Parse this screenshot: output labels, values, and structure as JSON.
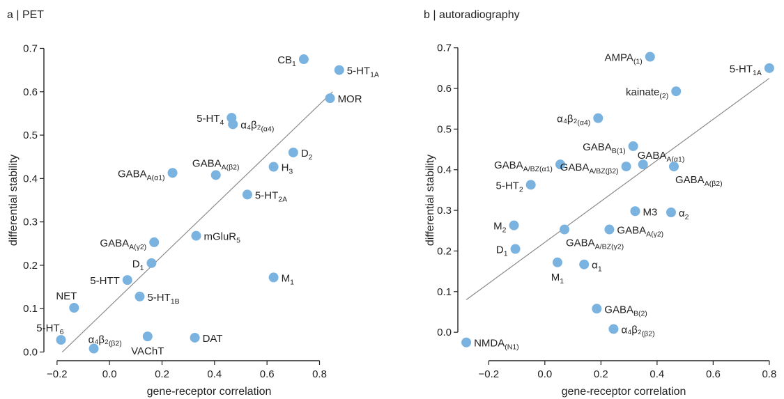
{
  "chart_data": [
    {
      "type": "scatter",
      "title": "a | PET",
      "xlabel": "gene-receptor correlation",
      "ylabel": "differential stability",
      "xlim": [
        -0.25,
        0.95
      ],
      "ylim": [
        -0.02,
        0.72
      ],
      "xticks": [
        -0.2,
        0.0,
        0.2,
        0.4,
        0.6,
        0.8
      ],
      "xtick_labels": [
        "−0.2",
        "0.0",
        "0.2",
        "0.4",
        "0.6",
        "0.8"
      ],
      "yticks": [
        0.0,
        0.1,
        0.2,
        0.3,
        0.4,
        0.5,
        0.6,
        0.7
      ],
      "ytick_labels": [
        "0.0",
        "0.1",
        "0.2",
        "0.3",
        "0.4",
        "0.5",
        "0.6",
        "0.7"
      ],
      "point_color": "#7ab3e0",
      "line_color": "#8a8a8a",
      "fit_line": {
        "x": [
          -0.18,
          0.85
        ],
        "y": [
          0.0,
          0.6
        ]
      },
      "points": [
        {
          "x": 0.74,
          "y": 0.675,
          "label": "CB",
          "sub": "1",
          "anchor": "left"
        },
        {
          "x": 0.875,
          "y": 0.65,
          "label": "5-HT",
          "sub": "1A",
          "anchor": "right"
        },
        {
          "x": 0.84,
          "y": 0.585,
          "label": "MOR",
          "sub": "",
          "anchor": "right"
        },
        {
          "x": 0.465,
          "y": 0.54,
          "label": "5-HT",
          "sub": "4",
          "anchor": "left"
        },
        {
          "x": 0.47,
          "y": 0.525,
          "label": "α₄β₂",
          "sub": "(α4)",
          "anchor": "right"
        },
        {
          "x": 0.7,
          "y": 0.46,
          "label": "D",
          "sub": "2",
          "anchor": "right"
        },
        {
          "x": 0.24,
          "y": 0.413,
          "label": "GABA",
          "sub": "A(α1)",
          "anchor": "left"
        },
        {
          "x": 0.405,
          "y": 0.408,
          "label": "GABA",
          "sub": "A(β2)",
          "anchor": "above"
        },
        {
          "x": 0.625,
          "y": 0.427,
          "label": "H",
          "sub": "3",
          "anchor": "right"
        },
        {
          "x": 0.525,
          "y": 0.363,
          "label": "5-HT",
          "sub": "2A",
          "anchor": "right"
        },
        {
          "x": 0.33,
          "y": 0.268,
          "label": "mGluR",
          "sub": "5",
          "anchor": "right"
        },
        {
          "x": 0.17,
          "y": 0.253,
          "label": "GABA",
          "sub": "A(γ2)",
          "anchor": "left"
        },
        {
          "x": 0.16,
          "y": 0.205,
          "label": "D",
          "sub": "1",
          "anchor": "left"
        },
        {
          "x": 0.625,
          "y": 0.172,
          "label": "M",
          "sub": "1",
          "anchor": "right"
        },
        {
          "x": 0.068,
          "y": 0.166,
          "label": "5-HTT",
          "sub": "",
          "anchor": "left"
        },
        {
          "x": 0.115,
          "y": 0.128,
          "label": "5-HT",
          "sub": "1B",
          "anchor": "right"
        },
        {
          "x": -0.135,
          "y": 0.102,
          "label": "NET",
          "sub": "",
          "anchor": "aboveleft"
        },
        {
          "x": -0.185,
          "y": 0.028,
          "label": "5-HT",
          "sub": "6",
          "anchor": "aboveleft"
        },
        {
          "x": -0.06,
          "y": 0.008,
          "label": "α₄β₂",
          "sub": "(β2)",
          "anchor": "aboveright"
        },
        {
          "x": 0.145,
          "y": 0.036,
          "label": "VAChT",
          "sub": "",
          "anchor": "below"
        },
        {
          "x": 0.325,
          "y": 0.033,
          "label": "DAT",
          "sub": "",
          "anchor": "right"
        }
      ]
    },
    {
      "type": "scatter",
      "title": "b | autoradiography",
      "xlabel": "gene-receptor correlation",
      "ylabel": "differential stability",
      "xlim": [
        -0.31,
        0.84
      ],
      "ylim": [
        -0.07,
        0.72
      ],
      "xticks": [
        -0.2,
        0.0,
        0.2,
        0.4,
        0.6,
        0.8
      ],
      "xtick_labels": [
        "−0.2",
        "0.0",
        "0.2",
        "0.4",
        "0.6",
        "0.8"
      ],
      "yticks": [
        0.0,
        0.1,
        0.2,
        0.3,
        0.4,
        0.5,
        0.6,
        0.7
      ],
      "ytick_labels": [
        "0.0",
        "0.1",
        "0.2",
        "0.3",
        "0.4",
        "0.5",
        "0.6",
        "0.7"
      ],
      "point_color": "#7ab3e0",
      "line_color": "#8a8a8a",
      "fit_line": {
        "x": [
          -0.28,
          0.8
        ],
        "y": [
          0.08,
          0.625
        ]
      },
      "points": [
        {
          "x": 0.375,
          "y": 0.678,
          "label": "AMPA",
          "sub": "(1)",
          "anchor": "left"
        },
        {
          "x": 0.8,
          "y": 0.65,
          "label": "5-HT",
          "sub": "1A",
          "anchor": "left"
        },
        {
          "x": 0.468,
          "y": 0.593,
          "label": "kainate",
          "sub": "(2)",
          "anchor": "left"
        },
        {
          "x": 0.19,
          "y": 0.527,
          "label": "α₄β₂",
          "sub": "(α4)",
          "anchor": "left"
        },
        {
          "x": 0.315,
          "y": 0.458,
          "label": "GABA",
          "sub": "B(1)",
          "anchor": "left"
        },
        {
          "x": 0.35,
          "y": 0.413,
          "label": "GABA",
          "sub": "A(α1)",
          "anchor": "aboveright"
        },
        {
          "x": 0.055,
          "y": 0.413,
          "label": "GABA",
          "sub": "A/BZ(α1)",
          "anchor": "left"
        },
        {
          "x": 0.29,
          "y": 0.408,
          "label": "GABA",
          "sub": "A/BZ(β2)",
          "anchor": "left"
        },
        {
          "x": 0.46,
          "y": 0.408,
          "label": "GABA",
          "sub": "A(β2)",
          "anchor": "belowright"
        },
        {
          "x": -0.05,
          "y": 0.363,
          "label": "5-HT",
          "sub": "2",
          "anchor": "left"
        },
        {
          "x": 0.322,
          "y": 0.298,
          "label": "M3",
          "sub": "",
          "anchor": "right"
        },
        {
          "x": 0.45,
          "y": 0.295,
          "label": "α",
          "sub": "2",
          "anchor": "right"
        },
        {
          "x": -0.11,
          "y": 0.263,
          "label": "M",
          "sub": "2",
          "anchor": "left"
        },
        {
          "x": 0.07,
          "y": 0.253,
          "label": "GABA",
          "sub": "A/BZ(γ2)",
          "anchor": "belowright"
        },
        {
          "x": 0.23,
          "y": 0.253,
          "label": "GABA",
          "sub": "A(γ2)",
          "anchor": "right"
        },
        {
          "x": -0.105,
          "y": 0.205,
          "label": "D",
          "sub": "1",
          "anchor": "left"
        },
        {
          "x": 0.045,
          "y": 0.172,
          "label": "M",
          "sub": "1",
          "anchor": "below"
        },
        {
          "x": 0.14,
          "y": 0.167,
          "label": "α",
          "sub": "1",
          "anchor": "right"
        },
        {
          "x": 0.185,
          "y": 0.058,
          "label": "GABA",
          "sub": "B(2)",
          "anchor": "right"
        },
        {
          "x": 0.245,
          "y": 0.008,
          "label": "α₄β₂",
          "sub": "(β2)",
          "anchor": "right"
        },
        {
          "x": -0.28,
          "y": -0.025,
          "label": "NMDA",
          "sub": "(N1)",
          "anchor": "right"
        }
      ]
    }
  ]
}
